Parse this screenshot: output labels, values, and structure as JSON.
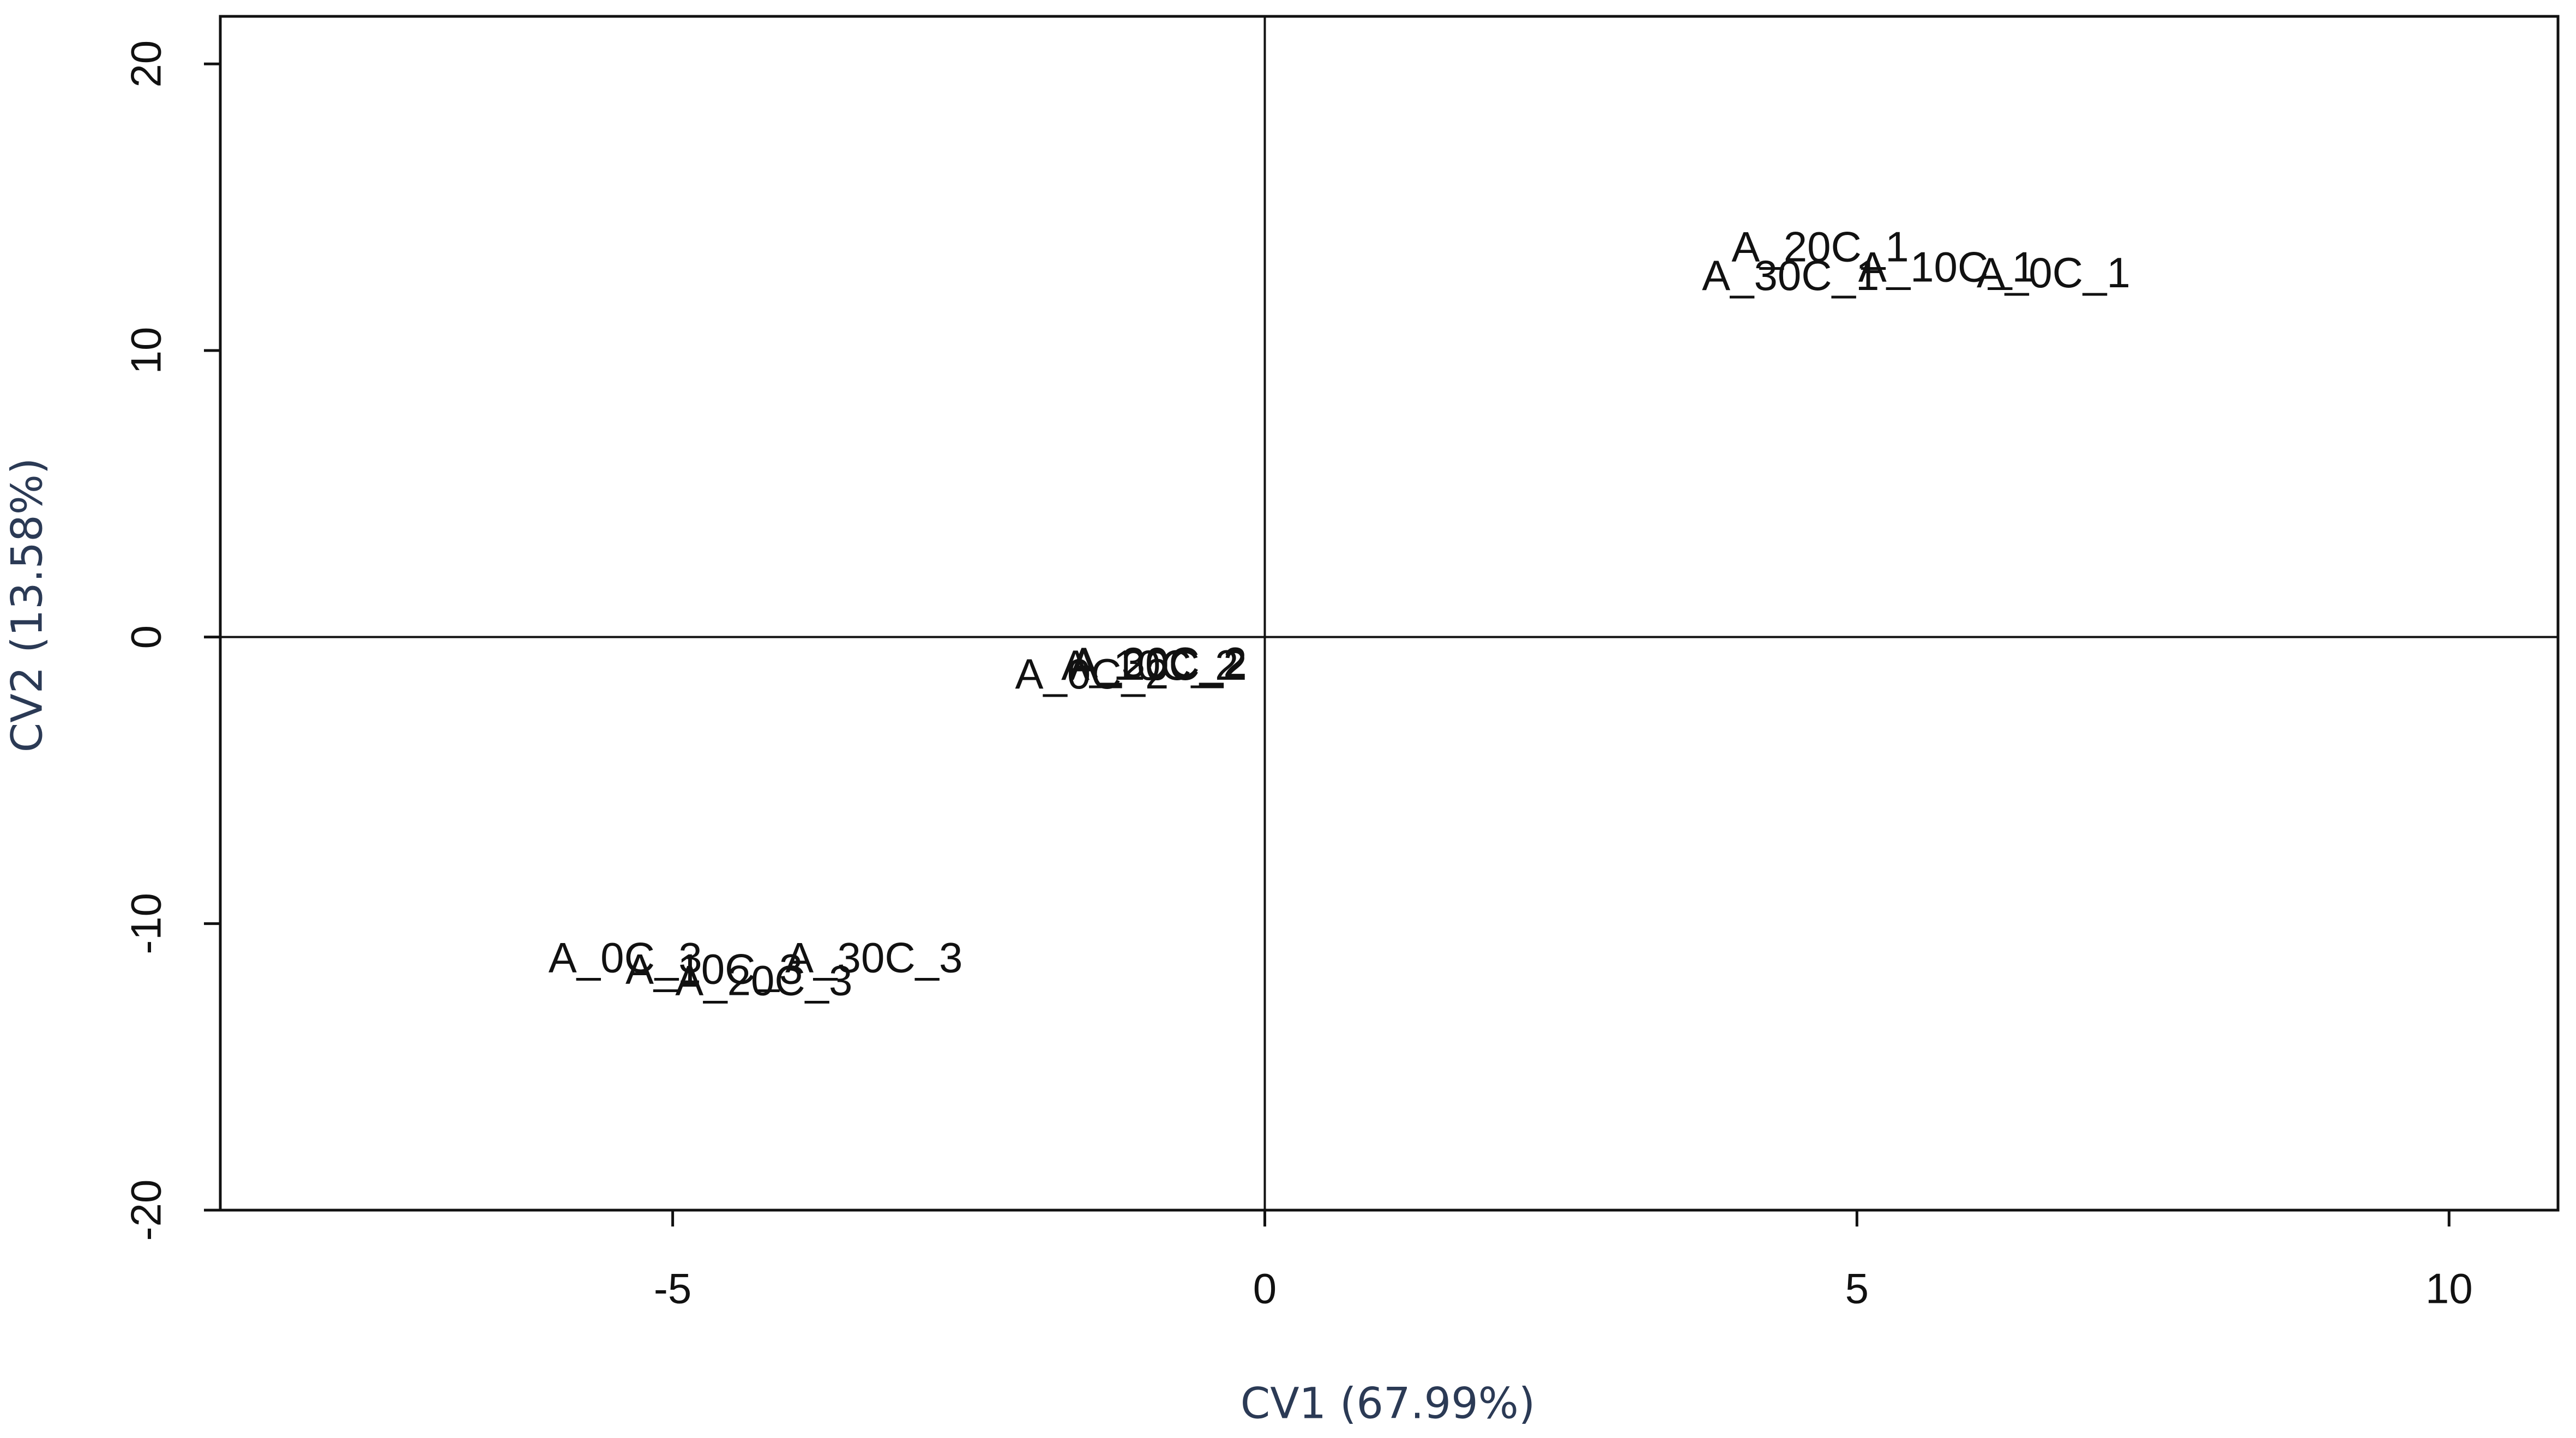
{
  "chart_data": {
    "type": "scatter",
    "xlabel": "CV1 (67.99%)",
    "ylabel": "CV2 (13.58%)",
    "labels": [
      "A_0C_1",
      "A_10C_1",
      "A_20C_1",
      "A_30C_1",
      "A_0C_2",
      "A_10C_2",
      "A_20C_2",
      "A_30C_2",
      "A_0C_3",
      "A_10C_3",
      "A_20C_3",
      "A_30C_3"
    ],
    "x": [
      6.66,
      5.76,
      4.69,
      4.44,
      -1.46,
      -0.97,
      -0.9,
      -0.9,
      -5.4,
      -4.65,
      -4.23,
      -3.3
    ],
    "y": [
      12.6,
      12.8,
      13.5,
      12.5,
      -1.4,
      -1.1,
      -1.1,
      -1.0,
      -11.3,
      -11.7,
      -12.1,
      -11.3
    ],
    "xlim": [
      -8.82,
      10.92
    ],
    "ylim": [
      -20.0,
      21.66
    ],
    "xticks": [
      -5,
      0,
      5,
      10
    ],
    "yticks": [
      -20,
      -10,
      0,
      10,
      20
    ],
    "hline": 0,
    "vline": 0
  }
}
